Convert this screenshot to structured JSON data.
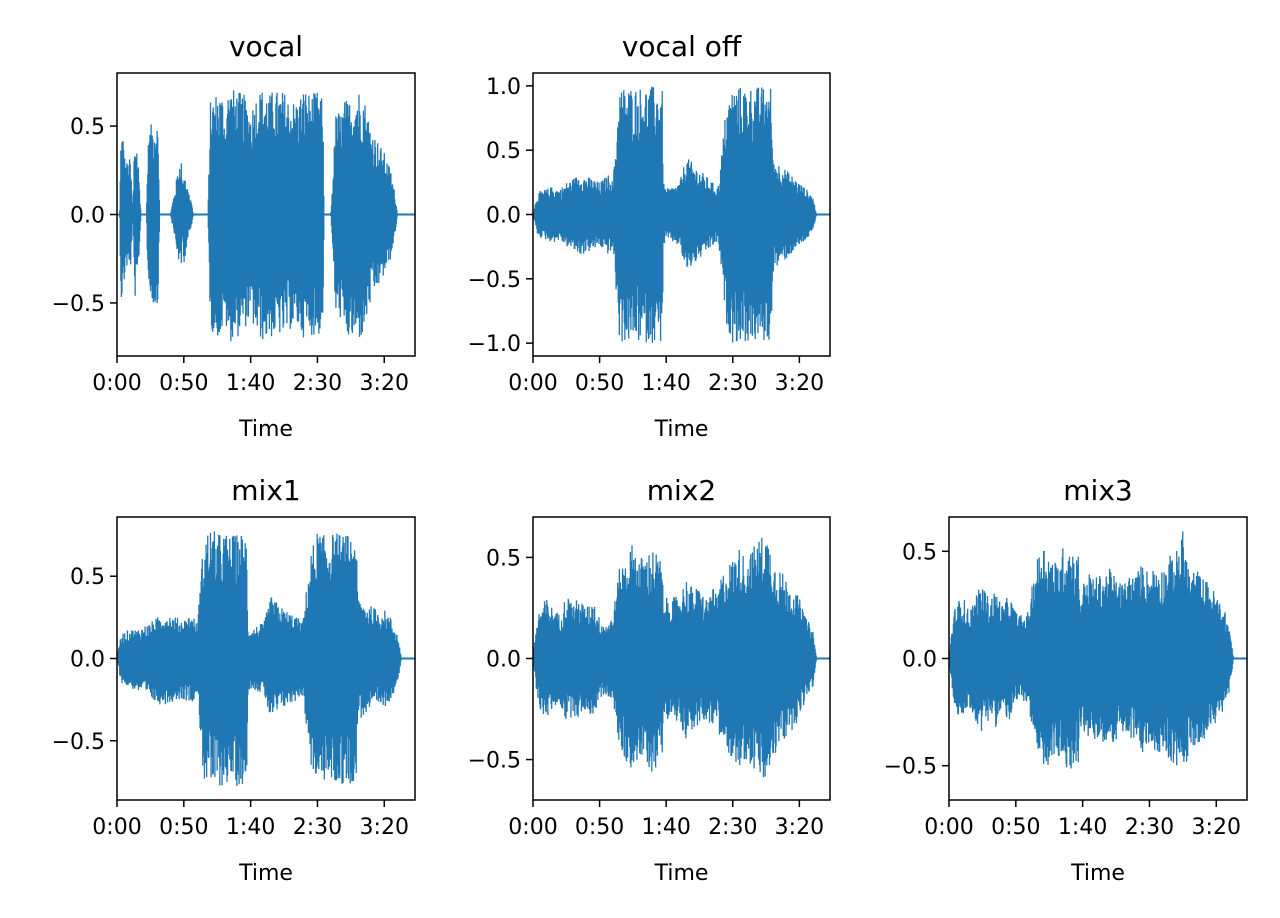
{
  "chart_data": [
    {
      "type": "line",
      "title": "vocal",
      "xlabel": "Time",
      "ylabel": "",
      "xticks": [
        "0:00",
        "0:50",
        "1:40",
        "2:30",
        "3:20"
      ],
      "xtick_seconds": [
        0,
        50,
        100,
        150,
        200
      ],
      "xlim": [
        0,
        223
      ],
      "yticks": [
        -0.5,
        0.0,
        0.5
      ],
      "ytick_labels": [
        "−0.5",
        "0.0",
        "0.5"
      ],
      "ylim": [
        -0.8,
        0.8
      ],
      "duration_s": 213,
      "color": "#1f77b4",
      "envelope": {
        "t": [
          0,
          2,
          3,
          5,
          6,
          8,
          10,
          12,
          13,
          15,
          16,
          18,
          19,
          20,
          21,
          22,
          23,
          24,
          26,
          28,
          30,
          31,
          32,
          33,
          35,
          36,
          40,
          48,
          49,
          50,
          53,
          56,
          57,
          65,
          68,
          70,
          75,
          80,
          81,
          82,
          85,
          90,
          95,
          100,
          105,
          110,
          115,
          117,
          120,
          125,
          130,
          135,
          140,
          145,
          150,
          154,
          155,
          160,
          164,
          168,
          170,
          175,
          180,
          184,
          190,
          195,
          200,
          205,
          208,
          210,
          223
        ],
        "top": [
          0.0,
          0.0,
          0.48,
          0.45,
          0.3,
          0.3,
          0.32,
          0.0,
          0.46,
          0.4,
          0.3,
          0.0,
          0.0,
          0.0,
          0.0,
          0.0,
          0.35,
          0.48,
          0.52,
          0.54,
          0.55,
          0.4,
          0.0,
          0.0,
          0.0,
          0.0,
          0.0,
          0.36,
          0.12,
          0.28,
          0.15,
          0.07,
          0.0,
          0.0,
          0.0,
          0.65,
          0.7,
          0.68,
          0.5,
          0.7,
          0.72,
          0.7,
          0.68,
          0.6,
          0.7,
          0.72,
          0.68,
          0.72,
          0.7,
          0.7,
          0.65,
          0.65,
          0.72,
          0.68,
          0.7,
          0.65,
          0.0,
          0.0,
          0.6,
          0.58,
          0.65,
          0.65,
          0.72,
          0.7,
          0.5,
          0.42,
          0.35,
          0.25,
          0.12,
          0.0,
          0.0
        ],
        "bottom": [
          0.0,
          0.0,
          -0.5,
          -0.45,
          -0.32,
          -0.3,
          -0.35,
          0.0,
          -0.48,
          -0.45,
          -0.32,
          0.0,
          0.0,
          0.0,
          0.0,
          0.0,
          -0.32,
          -0.45,
          -0.5,
          -0.52,
          -0.55,
          -0.4,
          0.0,
          0.0,
          0.0,
          0.0,
          0.0,
          -0.35,
          -0.12,
          -0.28,
          -0.15,
          -0.07,
          0.0,
          0.0,
          0.0,
          -0.65,
          -0.7,
          -0.68,
          -0.5,
          -0.72,
          -0.72,
          -0.7,
          -0.65,
          -0.6,
          -0.7,
          -0.72,
          -0.7,
          -0.7,
          -0.68,
          -0.7,
          -0.65,
          -0.65,
          -0.7,
          -0.68,
          -0.7,
          -0.65,
          0.0,
          0.0,
          -0.62,
          -0.58,
          -0.7,
          -0.72,
          -0.72,
          -0.7,
          -0.5,
          -0.42,
          -0.35,
          -0.25,
          -0.12,
          0.0,
          0.0
        ]
      }
    },
    {
      "type": "line",
      "title": "vocal off",
      "xlabel": "Time",
      "ylabel": "",
      "xticks": [
        "0:00",
        "0:50",
        "1:40",
        "2:30",
        "3:20"
      ],
      "xtick_seconds": [
        0,
        50,
        100,
        150,
        200
      ],
      "xlim": [
        0,
        223
      ],
      "yticks": [
        -1.0,
        -0.5,
        0.0,
        0.5,
        1.0
      ],
      "ytick_labels": [
        "−1.0",
        "−0.5",
        "0.0",
        "0.5",
        "1.0"
      ],
      "ylim": [
        -1.1,
        1.1
      ],
      "duration_s": 213,
      "color": "#1f77b4",
      "envelope": {
        "t": [
          0,
          3,
          5,
          10,
          15,
          20,
          25,
          30,
          35,
          40,
          45,
          50,
          55,
          58,
          60,
          65,
          70,
          75,
          80,
          85,
          90,
          95,
          97,
          98,
          100,
          105,
          110,
          115,
          120,
          125,
          130,
          135,
          139,
          140,
          145,
          150,
          155,
          160,
          165,
          170,
          175,
          179,
          180,
          185,
          190,
          195,
          200,
          205,
          210,
          213
        ],
        "top": [
          0.0,
          0.15,
          0.18,
          0.2,
          0.22,
          0.2,
          0.25,
          0.28,
          0.32,
          0.3,
          0.28,
          0.25,
          0.3,
          0.32,
          0.25,
          1.0,
          1.0,
          1.0,
          1.0,
          1.0,
          1.0,
          1.0,
          1.0,
          0.25,
          0.2,
          0.22,
          0.25,
          0.45,
          0.4,
          0.35,
          0.3,
          0.25,
          0.22,
          0.3,
          0.85,
          1.0,
          1.0,
          1.0,
          1.0,
          1.0,
          1.0,
          1.0,
          0.45,
          0.4,
          0.35,
          0.3,
          0.25,
          0.2,
          0.15,
          0.0
        ],
        "bottom": [
          0.0,
          -0.15,
          -0.18,
          -0.2,
          -0.22,
          -0.2,
          -0.25,
          -0.28,
          -0.32,
          -0.3,
          -0.28,
          -0.25,
          -0.3,
          -0.32,
          -0.25,
          -1.0,
          -1.0,
          -1.0,
          -1.0,
          -1.0,
          -1.0,
          -1.0,
          -1.0,
          -0.25,
          -0.2,
          -0.22,
          -0.25,
          -0.45,
          -0.4,
          -0.35,
          -0.3,
          -0.25,
          -0.22,
          -0.3,
          -0.85,
          -1.0,
          -1.0,
          -1.0,
          -1.0,
          -1.0,
          -1.0,
          -1.0,
          -0.45,
          -0.4,
          -0.35,
          -0.3,
          -0.25,
          -0.2,
          -0.15,
          0.0
        ]
      }
    },
    {
      "type": "line",
      "title": "mix1",
      "xlabel": "Time",
      "ylabel": "",
      "xticks": [
        "0:00",
        "0:50",
        "1:40",
        "2:30",
        "3:20"
      ],
      "xtick_seconds": [
        0,
        50,
        100,
        150,
        200
      ],
      "xlim": [
        0,
        223
      ],
      "yticks": [
        -0.5,
        0.0,
        0.5
      ],
      "ytick_labels": [
        "−0.5",
        "0.0",
        "0.5"
      ],
      "ylim": [
        -0.86,
        0.86
      ],
      "duration_s": 213,
      "color": "#1f77b4",
      "envelope": {
        "t": [
          0,
          3,
          5,
          10,
          15,
          20,
          25,
          30,
          35,
          40,
          45,
          50,
          55,
          58,
          60,
          65,
          70,
          75,
          80,
          85,
          90,
          95,
          97,
          98,
          100,
          105,
          110,
          115,
          120,
          125,
          130,
          135,
          139,
          140,
          145,
          150,
          155,
          160,
          165,
          170,
          175,
          179,
          180,
          185,
          190,
          195,
          200,
          205,
          210,
          213
        ],
        "top": [
          0.0,
          0.15,
          0.16,
          0.18,
          0.18,
          0.2,
          0.22,
          0.25,
          0.28,
          0.27,
          0.25,
          0.24,
          0.27,
          0.25,
          0.2,
          0.75,
          0.8,
          0.76,
          0.77,
          0.75,
          0.76,
          0.77,
          0.75,
          0.2,
          0.18,
          0.2,
          0.22,
          0.38,
          0.34,
          0.3,
          0.28,
          0.25,
          0.22,
          0.3,
          0.65,
          0.78,
          0.75,
          0.76,
          0.77,
          0.75,
          0.76,
          0.77,
          0.38,
          0.35,
          0.32,
          0.3,
          0.3,
          0.25,
          0.15,
          0.0
        ],
        "bottom": [
          0.0,
          -0.15,
          -0.16,
          -0.18,
          -0.2,
          -0.22,
          -0.25,
          -0.28,
          -0.28,
          -0.27,
          -0.25,
          -0.25,
          -0.27,
          -0.25,
          -0.2,
          -0.75,
          -0.78,
          -0.8,
          -0.77,
          -0.75,
          -0.78,
          -0.77,
          -0.75,
          -0.2,
          -0.18,
          -0.2,
          -0.22,
          -0.38,
          -0.34,
          -0.3,
          -0.28,
          -0.25,
          -0.22,
          -0.3,
          -0.65,
          -0.78,
          -0.75,
          -0.76,
          -0.77,
          -0.78,
          -0.76,
          -0.75,
          -0.38,
          -0.35,
          -0.32,
          -0.3,
          -0.3,
          -0.25,
          -0.15,
          0.0
        ]
      }
    },
    {
      "type": "line",
      "title": "mix2",
      "xlabel": "Time",
      "ylabel": "",
      "xticks": [
        "0:00",
        "0:50",
        "1:40",
        "2:30",
        "3:20"
      ],
      "xtick_seconds": [
        0,
        50,
        100,
        150,
        200
      ],
      "xlim": [
        0,
        223
      ],
      "yticks": [
        -0.5,
        0.0,
        0.5
      ],
      "ytick_labels": [
        "−0.5",
        "0.0",
        "0.5"
      ],
      "ylim": [
        -0.7,
        0.7
      ],
      "duration_s": 213,
      "color": "#1f77b4",
      "envelope": {
        "t": [
          0,
          3,
          5,
          10,
          15,
          20,
          25,
          30,
          35,
          40,
          45,
          50,
          55,
          58,
          60,
          65,
          70,
          75,
          80,
          85,
          90,
          95,
          97,
          98,
          100,
          105,
          110,
          115,
          120,
          125,
          130,
          135,
          139,
          140,
          145,
          150,
          155,
          160,
          165,
          170,
          175,
          179,
          180,
          185,
          190,
          195,
          200,
          205,
          210,
          213
        ],
        "top": [
          0.0,
          0.2,
          0.25,
          0.3,
          0.25,
          0.22,
          0.32,
          0.28,
          0.3,
          0.25,
          0.3,
          0.2,
          0.18,
          0.2,
          0.22,
          0.45,
          0.5,
          0.58,
          0.5,
          0.52,
          0.55,
          0.5,
          0.48,
          0.25,
          0.3,
          0.3,
          0.32,
          0.4,
          0.35,
          0.35,
          0.3,
          0.35,
          0.3,
          0.4,
          0.45,
          0.5,
          0.55,
          0.5,
          0.55,
          0.6,
          0.63,
          0.55,
          0.5,
          0.45,
          0.4,
          0.35,
          0.3,
          0.2,
          0.15,
          0.0
        ],
        "bottom": [
          0.0,
          -0.2,
          -0.25,
          -0.3,
          -0.25,
          -0.22,
          -0.32,
          -0.28,
          -0.3,
          -0.25,
          -0.3,
          -0.2,
          -0.18,
          -0.2,
          -0.22,
          -0.45,
          -0.52,
          -0.55,
          -0.5,
          -0.52,
          -0.58,
          -0.5,
          -0.48,
          -0.25,
          -0.3,
          -0.3,
          -0.32,
          -0.4,
          -0.35,
          -0.35,
          -0.3,
          -0.35,
          -0.3,
          -0.4,
          -0.45,
          -0.5,
          -0.55,
          -0.5,
          -0.55,
          -0.6,
          -0.63,
          -0.55,
          -0.5,
          -0.45,
          -0.4,
          -0.35,
          -0.3,
          -0.2,
          -0.15,
          0.0
        ]
      }
    },
    {
      "type": "line",
      "title": "mix3",
      "xlabel": "Time",
      "ylabel": "",
      "xticks": [
        "0:00",
        "0:50",
        "1:40",
        "2:30",
        "3:20"
      ],
      "xtick_seconds": [
        0,
        50,
        100,
        150,
        200
      ],
      "xlim": [
        0,
        223
      ],
      "yticks": [
        -0.5,
        0.0,
        0.5
      ],
      "ytick_labels": [
        "−0.5",
        "0.0",
        "0.5"
      ],
      "ylim": [
        -0.66,
        0.66
      ],
      "duration_s": 213,
      "color": "#1f77b4",
      "envelope": {
        "t": [
          0,
          3,
          5,
          10,
          15,
          20,
          25,
          30,
          35,
          40,
          45,
          50,
          55,
          58,
          60,
          65,
          70,
          75,
          80,
          85,
          90,
          95,
          97,
          98,
          100,
          105,
          110,
          115,
          120,
          125,
          130,
          135,
          139,
          140,
          145,
          150,
          155,
          160,
          165,
          170,
          175,
          179,
          180,
          185,
          190,
          195,
          200,
          205,
          210,
          213
        ],
        "top": [
          0.0,
          0.2,
          0.25,
          0.3,
          0.22,
          0.3,
          0.35,
          0.28,
          0.32,
          0.25,
          0.3,
          0.22,
          0.2,
          0.2,
          0.25,
          0.45,
          0.55,
          0.5,
          0.45,
          0.52,
          0.55,
          0.48,
          0.5,
          0.3,
          0.35,
          0.4,
          0.38,
          0.4,
          0.42,
          0.38,
          0.35,
          0.4,
          0.38,
          0.4,
          0.45,
          0.4,
          0.45,
          0.42,
          0.48,
          0.5,
          0.6,
          0.45,
          0.4,
          0.42,
          0.38,
          0.35,
          0.3,
          0.25,
          0.15,
          0.0
        ],
        "bottom": [
          0.0,
          -0.2,
          -0.25,
          -0.3,
          -0.22,
          -0.3,
          -0.35,
          -0.28,
          -0.32,
          -0.25,
          -0.3,
          -0.22,
          -0.2,
          -0.2,
          -0.25,
          -0.45,
          -0.55,
          -0.5,
          -0.45,
          -0.52,
          -0.55,
          -0.48,
          -0.5,
          -0.3,
          -0.35,
          -0.4,
          -0.38,
          -0.4,
          -0.42,
          -0.38,
          -0.35,
          -0.4,
          -0.38,
          -0.4,
          -0.45,
          -0.4,
          -0.45,
          -0.42,
          -0.48,
          -0.5,
          -0.6,
          -0.45,
          -0.4,
          -0.42,
          -0.38,
          -0.35,
          -0.3,
          -0.25,
          -0.15,
          0.0
        ]
      }
    }
  ]
}
